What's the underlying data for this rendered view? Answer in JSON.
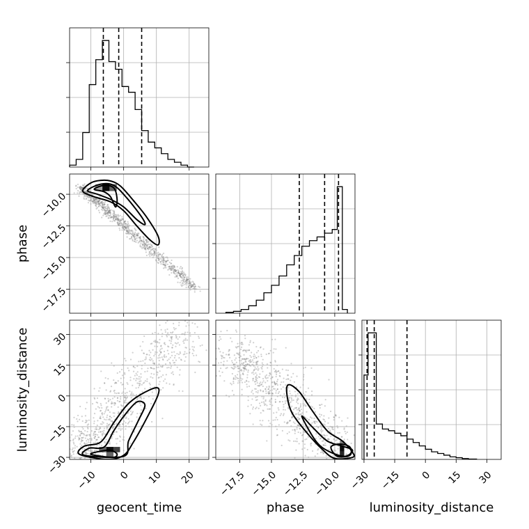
{
  "chart_data": {
    "type": "corner",
    "parameters": [
      "geocent_time",
      "phase",
      "luminosity_distance"
    ],
    "axes": {
      "geocent_time": {
        "range": [
          -16.5,
          26
        ],
        "ticks": [
          -10,
          0,
          10,
          20
        ],
        "tick_labels": [
          "−10",
          "0",
          "10",
          "20"
        ]
      },
      "phase": {
        "range": [
          -19.4,
          -8.4
        ],
        "ticks": [
          -17.5,
          -15.0,
          -12.5,
          -10.0
        ],
        "tick_labels": [
          "−17.5",
          "−15.0",
          "−12.5",
          "−10.0"
        ]
      },
      "luminosity_distance": {
        "range": [
          -31,
          37
        ],
        "ticks": [
          -30,
          -15,
          0,
          15,
          30
        ],
        "tick_labels": [
          "−30",
          "−15",
          "0",
          "15",
          "30"
        ]
      }
    },
    "histograms": [
      {
        "parameter": "geocent_time",
        "bin_edges": [
          -16.5,
          -14.5,
          -12.5,
          -10.5,
          -8.5,
          -6.5,
          -4.5,
          -2.5,
          -0.5,
          1.5,
          3.5,
          5.5,
          7.5,
          9.5,
          11.5,
          13.5,
          15.5,
          17.5,
          19.5,
          21.5
        ],
        "counts": [
          0.1,
          0.4,
          1.8,
          4.3,
          5.6,
          6.6,
          5.5,
          5.1,
          4.2,
          3.9,
          3.0,
          1.9,
          1.3,
          1.0,
          0.7,
          0.4,
          0.25,
          0.1,
          0
        ],
        "quantiles": [
          -6.2,
          -1.5,
          5.5
        ]
      },
      {
        "parameter": "phase",
        "bin_edges": [
          -18.6,
          -18.0,
          -17.4,
          -16.8,
          -16.2,
          -15.6,
          -15.0,
          -14.4,
          -13.8,
          -13.2,
          -12.6,
          -12.0,
          -11.4,
          -10.8,
          -10.2,
          -9.8,
          -9.4,
          -9.0
        ],
        "counts": [
          0.05,
          0.1,
          0.2,
          0.4,
          0.7,
          1.1,
          1.5,
          2.0,
          2.6,
          3.1,
          3.6,
          3.9,
          4.1,
          4.3,
          4.5,
          6.8,
          0.2
        ],
        "quantiles": [
          -12.8,
          -10.8,
          -9.7
        ]
      },
      {
        "parameter": "luminosity_distance",
        "bin_edges": [
          -30,
          -28,
          -25.5,
          -24,
          -21,
          -18,
          -15,
          -12,
          -9,
          -6,
          -3,
          0,
          3,
          6,
          9,
          12,
          15,
          18,
          21,
          25
        ],
        "counts": [
          5.0,
          7.5,
          7.5,
          2.1,
          1.8,
          1.7,
          1.55,
          1.4,
          1.2,
          1.0,
          0.8,
          0.6,
          0.45,
          0.35,
          0.25,
          0.15,
          0.1,
          0.05,
          0.02
        ],
        "quantiles": [
          -28.5,
          -25.0,
          -9.0
        ]
      }
    ],
    "pair_plots": [
      {
        "x": "geocent_time",
        "y": "phase",
        "scatter_trend": {
          "from": [
            -13,
            -9.5
          ],
          "to": [
            22,
            -17.5
          ],
          "spread": 0.9
        },
        "contours": [
          [
            [
              -12.5,
              -9.75
            ],
            [
              -10,
              -9.1
            ],
            [
              -7,
              -8.9
            ],
            [
              -4,
              -8.95
            ],
            [
              -1,
              -9.35
            ],
            [
              3,
              -10.5
            ],
            [
              7,
              -11.8
            ],
            [
              10.5,
              -13.3
            ],
            [
              10.5,
              -14.0
            ],
            [
              8,
              -13.6
            ],
            [
              4,
              -12.5
            ],
            [
              0,
              -11.3
            ],
            [
              -4,
              -10.6
            ],
            [
              -9,
              -10.2
            ],
            [
              -12.5,
              -9.75
            ]
          ],
          [
            [
              -11,
              -9.7
            ],
            [
              -7,
              -9.2
            ],
            [
              -3,
              -9.3
            ],
            [
              1,
              -10.3
            ],
            [
              5.5,
              -11.8
            ],
            [
              6.5,
              -12.4
            ],
            [
              4,
              -12.0
            ],
            [
              0,
              -11.0
            ],
            [
              -4,
              -10.4
            ],
            [
              -8,
              -10.0
            ],
            [
              -11,
              -9.7
            ]
          ],
          [
            [
              -9,
              -9.6
            ],
            [
              -6,
              -9.3
            ],
            [
              -3,
              -9.5
            ],
            [
              -2,
              -10.4
            ],
            [
              -2.5,
              -11.0
            ],
            [
              -4,
              -10.2
            ],
            [
              -6,
              -9.8
            ],
            [
              -9,
              -9.6
            ]
          ]
        ],
        "dense_cells": [
          {
            "x": -6.5,
            "y": -9.75,
            "w": 2.2,
            "h": 0.55,
            "shade": 0.95
          },
          {
            "x": -4.3,
            "y": -9.75,
            "w": 2.2,
            "h": 0.55,
            "shade": 0.6
          },
          {
            "x": -8.7,
            "y": -9.75,
            "w": 2.2,
            "h": 0.55,
            "shade": 0.35
          }
        ]
      },
      {
        "x": "geocent_time",
        "y": "luminosity_distance",
        "scatter_trend": {
          "from": [
            -14,
            -30
          ],
          "to": [
            18,
            32
          ],
          "spread": 4.5
        },
        "contours": [
          [
            [
              -13.5,
              -28.5
            ],
            [
              -12,
              -24.5
            ],
            [
              -7,
              -22.5
            ],
            [
              -3,
              -13
            ],
            [
              1,
              -4.5
            ],
            [
              5,
              0.5
            ],
            [
              10,
              4
            ],
            [
              10.5,
              0.5
            ],
            [
              7,
              -11
            ],
            [
              3,
              -22.5
            ],
            [
              0,
              -29
            ],
            [
              -5,
              -31
            ],
            [
              -13.5,
              -28.5
            ]
          ],
          [
            [
              -12,
              -29
            ],
            [
              -10.5,
              -25.5
            ],
            [
              -6,
              -25
            ],
            [
              -3,
              -17
            ],
            [
              0,
              -10
            ],
            [
              4,
              -3
            ],
            [
              6.5,
              -4.5
            ],
            [
              4.5,
              -12
            ],
            [
              1.5,
              -22
            ],
            [
              0,
              -29.5
            ],
            [
              -12,
              -29
            ]
          ],
          [
            [
              -10,
              -28.5
            ],
            [
              -7,
              -27
            ],
            [
              -4,
              -26.5
            ],
            [
              -2,
              -28.5
            ],
            [
              -3.5,
              -30
            ],
            [
              -10,
              -28.5
            ]
          ]
        ],
        "dense_cells": [
          {
            "x": -7.5,
            "y": -27.5,
            "w": 2.2,
            "h": 2.6,
            "shade": 0.6
          },
          {
            "x": -5.3,
            "y": -27.5,
            "w": 2.2,
            "h": 2.6,
            "shade": 0.95
          },
          {
            "x": -3.1,
            "y": -27.5,
            "w": 2.0,
            "h": 2.6,
            "shade": 0.75
          },
          {
            "x": -5.3,
            "y": -30.1,
            "w": 2.2,
            "h": 2.6,
            "shade": 0.6
          }
        ]
      },
      {
        "x": "phase",
        "y": "luminosity_distance",
        "scatter_trend": {
          "from": [
            -17.8,
            20
          ],
          "to": [
            -9.2,
            -31
          ],
          "spread": 5
        },
        "contours": [
          [
            [
              -13.6,
              5.5
            ],
            [
              -12.8,
              2
            ],
            [
              -11.8,
              -7
            ],
            [
              -10.6,
              -17
            ],
            [
              -9.4,
              -22
            ],
            [
              -8.6,
              -27.5
            ],
            [
              -8.6,
              -30
            ],
            [
              -10,
              -30.5
            ],
            [
              -11,
              -26
            ],
            [
              -12.2,
              -18
            ],
            [
              -13.4,
              -8
            ],
            [
              -13.8,
              2
            ],
            [
              -13.6,
              5.5
            ]
          ],
          [
            [
              -12.6,
              -10
            ],
            [
              -11.8,
              -15
            ],
            [
              -10.6,
              -22
            ],
            [
              -9.4,
              -24.5
            ],
            [
              -8.6,
              -26.5
            ],
            [
              -9.2,
              -29.5
            ],
            [
              -10.5,
              -27
            ],
            [
              -11.5,
              -22
            ],
            [
              -12.6,
              -10
            ]
          ],
          [
            [
              -10.3,
              -25
            ],
            [
              -9.6,
              -23.5
            ],
            [
              -8.8,
              -25
            ],
            [
              -8.8,
              -29
            ],
            [
              -9.8,
              -29.5
            ],
            [
              -10.3,
              -25
            ]
          ]
        ],
        "dense_cells": [
          {
            "x": -9.6,
            "y": -24.5,
            "w": 0.35,
            "h": 2.6,
            "shade": 0.5
          },
          {
            "x": -9.6,
            "y": -27.1,
            "w": 0.35,
            "h": 2.6,
            "shade": 0.95
          },
          {
            "x": -9.6,
            "y": -29.7,
            "w": 0.35,
            "h": 2.6,
            "shade": 0.85
          }
        ]
      }
    ],
    "grid": true,
    "quantile_line_style": "dashed"
  }
}
